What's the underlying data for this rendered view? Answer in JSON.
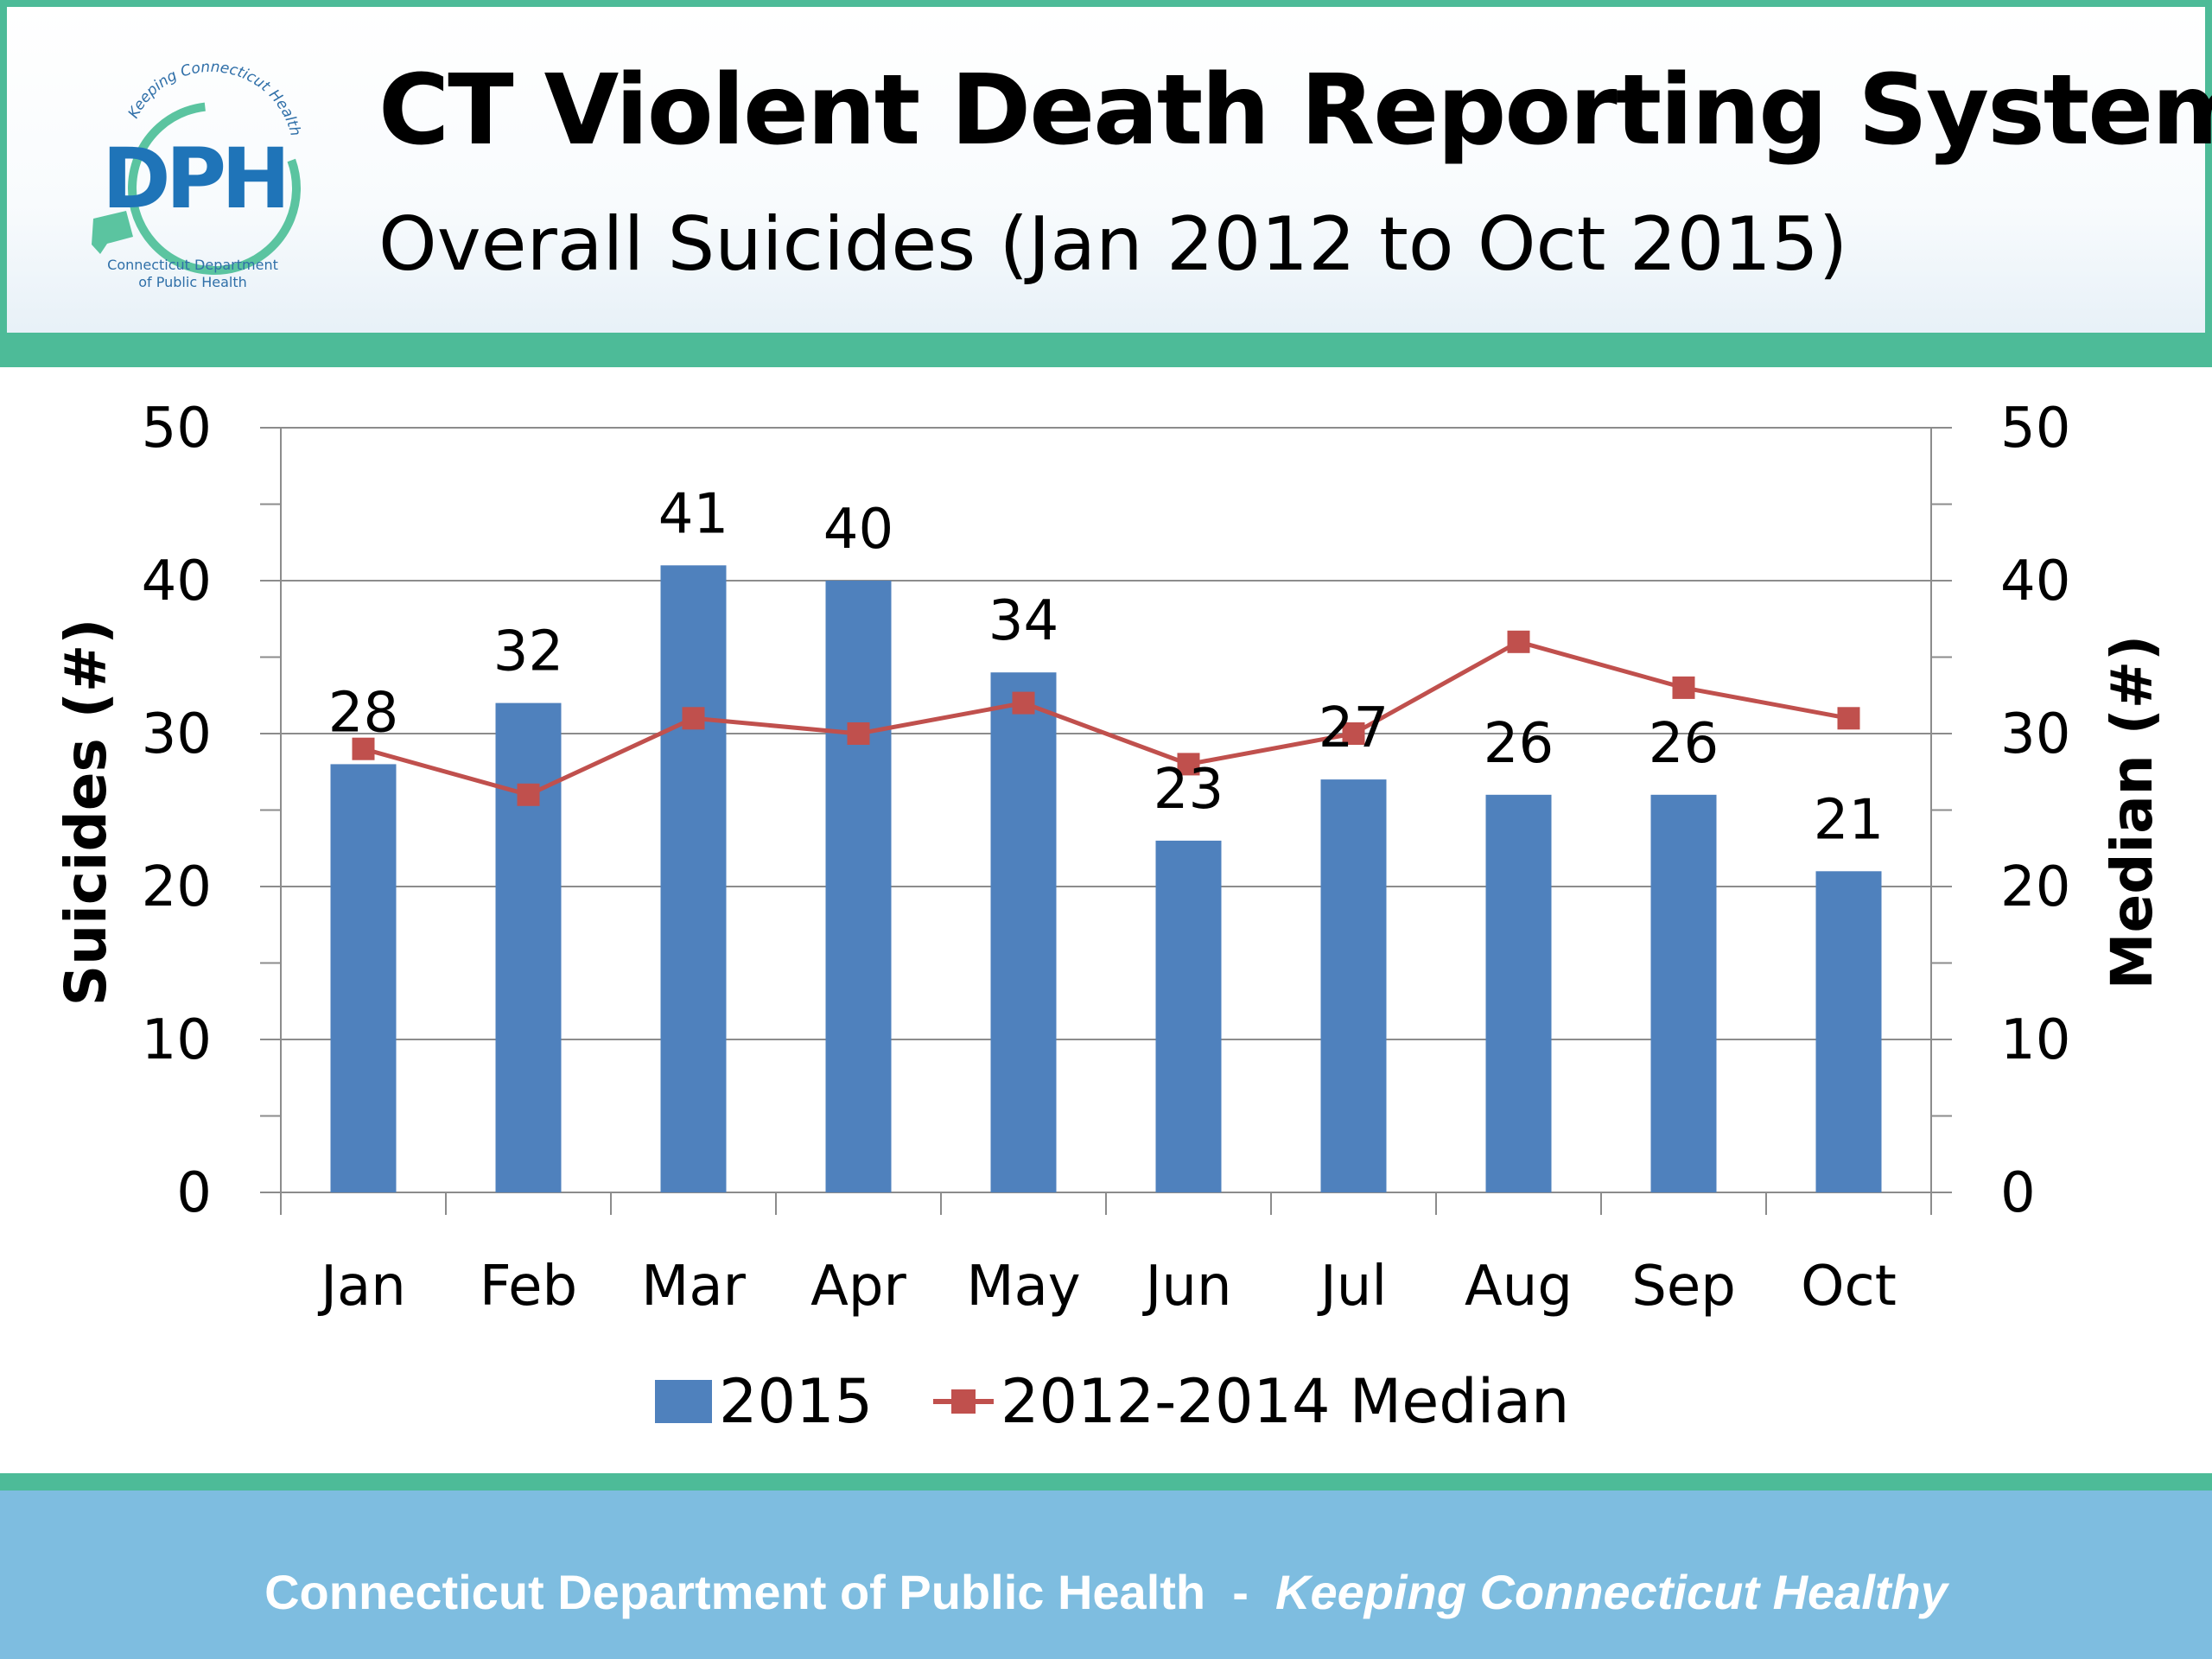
{
  "header": {
    "title": "CT Violent Death Reporting System",
    "subtitle": "Overall Suicides (Jan 2012 to Oct 2015)"
  },
  "logo": {
    "mark_text": "DPH",
    "arc_text": "Keeping Connecticut Healthy",
    "caption_line1": "Connecticut Department",
    "caption_line2": "of Public Health"
  },
  "footer": {
    "org": "Connecticut Department of Public Health",
    "separator": "  -  ",
    "tagline": "Keeping Connecticut Healthy"
  },
  "chart_data": {
    "type": "bar",
    "categories": [
      "Jan",
      "Feb",
      "Mar",
      "Apr",
      "May",
      "Jun",
      "Jul",
      "Aug",
      "Sep",
      "Oct"
    ],
    "series": [
      {
        "name": "2015",
        "type": "bar",
        "axis": "left",
        "color": "#4f81bd",
        "values": [
          28,
          32,
          41,
          40,
          34,
          23,
          27,
          26,
          26,
          21
        ],
        "data_labels": [
          "28",
          "32",
          "41",
          "40",
          "34",
          "23",
          "27",
          "26",
          "26",
          "21"
        ]
      },
      {
        "name": "2012-2014 Median",
        "type": "line",
        "axis": "right",
        "color": "#c0504d",
        "values": [
          29,
          26,
          31,
          30,
          32,
          28,
          30,
          36,
          33,
          31
        ]
      }
    ],
    "ylabel": "Suicides (#)",
    "y2label": "Median (#)",
    "ylim": [
      0,
      50
    ],
    "y2lim": [
      0,
      50
    ],
    "yticks": [
      "0",
      "10",
      "20",
      "30",
      "40",
      "50"
    ],
    "y2ticks": [
      "0",
      "10",
      "20",
      "30",
      "40",
      "50"
    ],
    "grid": true,
    "legend": "bottom"
  }
}
